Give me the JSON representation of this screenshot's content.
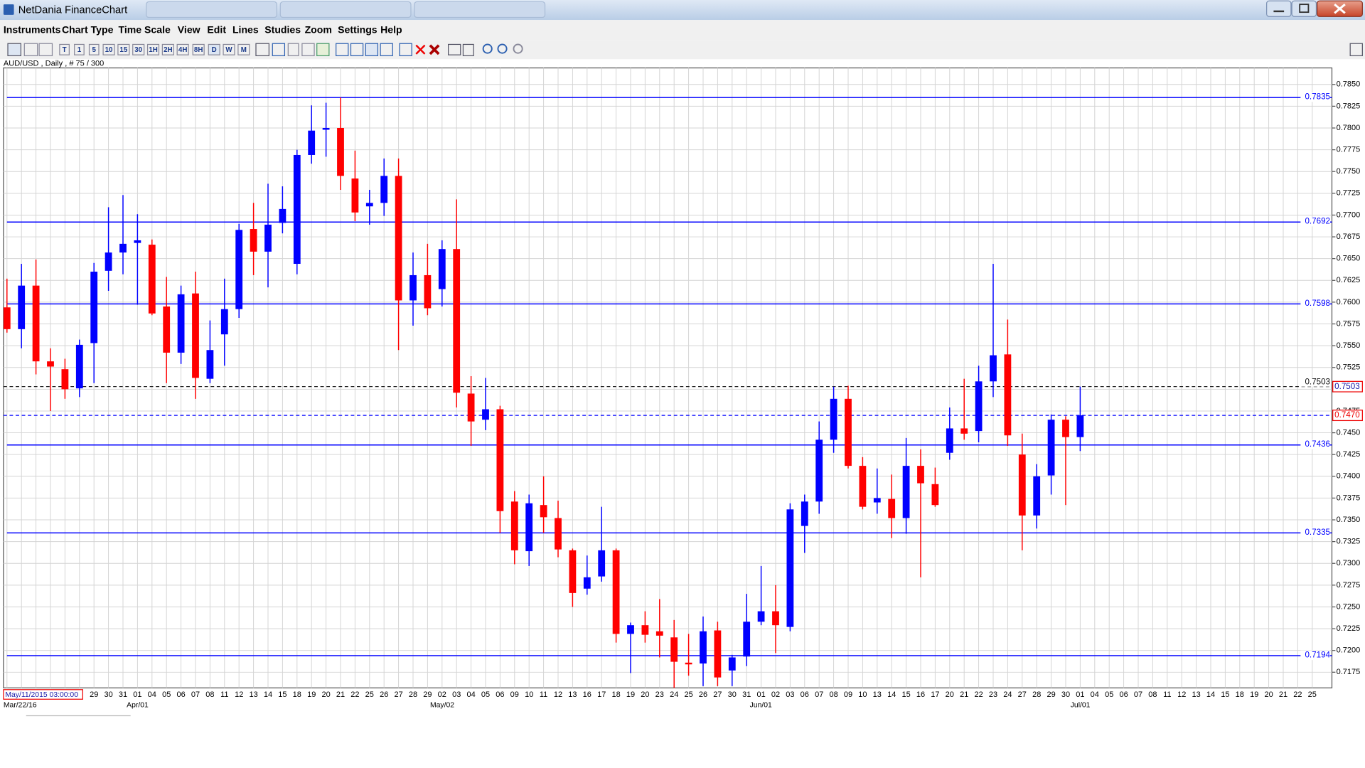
{
  "window": {
    "title": "NetDania FinanceChart",
    "menu": [
      "Instruments",
      "Chart Type",
      "Time Scale",
      "View",
      "Edit",
      "Lines",
      "Studies",
      "Zoom",
      "Settings",
      "Help"
    ],
    "timeframes": [
      "T",
      "1",
      "5",
      "10",
      "15",
      "30",
      "1H",
      "2H",
      "4H",
      "8H",
      "D",
      "W",
      "M"
    ],
    "info": "AUD/USD , Daily , # 75 / 300",
    "cursor_date": "May/11/2015 03:00:00"
  },
  "chart_data": {
    "type": "candlestick",
    "categories": [
      null,
      null,
      null,
      null,
      null,
      null,
      "29",
      "30",
      "31",
      "01",
      "04",
      "05",
      "06",
      "07",
      "08",
      "11",
      "12",
      "13",
      "14",
      "15",
      "18",
      "19",
      "20",
      "21",
      "22",
      "25",
      "26",
      "27",
      "28",
      "29",
      "02",
      "03",
      "04",
      "05",
      "06",
      "09",
      "10",
      "11",
      "12",
      "13",
      "16",
      "17",
      "18",
      "19",
      "20",
      "23",
      "24",
      "25",
      "26",
      "27",
      "30",
      "31",
      "01",
      "02",
      "03",
      "06",
      "07",
      "08",
      "09",
      "10",
      "13",
      "14",
      "15",
      "16",
      "17",
      "20",
      "21",
      "22",
      "23",
      "24",
      "27",
      "28",
      "29",
      "30",
      "01",
      "04",
      "05",
      "06",
      "07",
      "08",
      "11",
      "12",
      "13",
      "14",
      "15",
      "18",
      "19",
      "20",
      "21",
      "22",
      "25"
    ],
    "period_labels": [
      "Mar/22/16",
      "Apr/01",
      "May/02",
      "Jun/01",
      "Jul/01"
    ],
    "open": [
      0.7594,
      0.7569,
      0.7619,
      0.7532,
      0.7523,
      0.7501,
      0.7553,
      0.7636,
      0.7657,
      0.7668,
      0.7666,
      0.7595,
      0.7542,
      0.761,
      0.7512,
      0.7563,
      0.7592,
      0.7684,
      0.7658,
      0.7691,
      0.7644,
      0.7769,
      0.7798,
      0.78,
      0.7742,
      0.771,
      0.7714,
      0.7745,
      0.7602,
      0.7631,
      0.7615,
      0.7661,
      0.7495,
      0.7465,
      0.7477,
      0.7371,
      0.7314,
      0.7367,
      0.7352,
      0.7315,
      0.7271,
      0.7285,
      0.7315,
      0.7219,
      0.7229,
      0.7222,
      0.7215,
      0.7186,
      0.7185,
      0.7223,
      0.7177,
      0.7193,
      0.7233,
      0.7245,
      0.7227,
      0.7343,
      0.7371,
      0.7442,
      0.7489,
      0.7412,
      0.737,
      0.7374,
      0.7352,
      0.7412,
      0.7391,
      0.7427,
      0.7455,
      0.7452,
      0.7509,
      0.754,
      0.7425,
      0.7355,
      0.7401,
      0.7465,
      0.7445,
      null,
      null,
      null,
      null,
      null,
      null,
      null,
      null,
      null,
      null,
      null,
      null,
      null,
      null,
      null,
      null
    ],
    "high": [
      0.7627,
      0.7644,
      0.7649,
      0.7547,
      0.7535,
      0.7557,
      0.7645,
      0.7709,
      0.7723,
      0.7701,
      0.7672,
      0.7629,
      0.7619,
      0.7635,
      0.7579,
      0.7627,
      0.769,
      0.7714,
      0.7736,
      0.7733,
      0.7775,
      0.7826,
      0.7829,
      0.7835,
      0.7774,
      0.7729,
      0.7765,
      0.7765,
      0.7657,
      0.7667,
      0.7671,
      0.7718,
      0.7515,
      0.7513,
      0.7481,
      0.7383,
      0.7379,
      0.74,
      0.7372,
      0.7317,
      0.7309,
      0.7365,
      0.7317,
      0.7232,
      0.7245,
      0.7259,
      0.7235,
      0.7219,
      0.7239,
      0.7233,
      0.7195,
      0.7265,
      0.7297,
      0.7275,
      0.7369,
      0.7379,
      0.7463,
      0.7503,
      0.7504,
      0.7422,
      0.7409,
      0.7402,
      0.7444,
      0.7431,
      0.741,
      0.7479,
      0.7512,
      0.7527,
      0.7644,
      0.758,
      0.7449,
      0.7414,
      0.7471,
      0.7469,
      0.7503,
      null,
      null,
      null,
      null,
      null,
      null,
      null,
      null,
      null,
      null,
      null,
      null,
      null,
      null,
      null,
      null
    ],
    "low": [
      0.7565,
      0.7547,
      0.7517,
      0.7475,
      0.7489,
      0.7491,
      0.7507,
      0.7613,
      0.7632,
      0.7597,
      0.7585,
      0.7507,
      0.7529,
      0.7489,
      0.7507,
      0.7527,
      0.7582,
      0.7631,
      0.7617,
      0.7679,
      0.7632,
      0.7759,
      0.7767,
      0.7729,
      0.7693,
      0.7689,
      0.7699,
      0.7545,
      0.7573,
      0.7585,
      0.7595,
      0.7479,
      0.7435,
      0.7453,
      0.7335,
      0.7299,
      0.7297,
      0.7335,
      0.7307,
      0.725,
      0.7264,
      0.7279,
      0.7209,
      0.7174,
      0.7209,
      0.7192,
      0.7157,
      0.7171,
      0.7159,
      0.7159,
      0.7159,
      0.7182,
      0.7229,
      0.7197,
      0.7222,
      0.7312,
      0.7357,
      0.7427,
      0.7409,
      0.7362,
      0.7357,
      0.7329,
      0.7334,
      0.7284,
      0.7365,
      0.7419,
      0.7442,
      0.7439,
      0.7491,
      0.7435,
      0.7315,
      0.734,
      0.7379,
      0.7367,
      0.7429,
      null,
      null,
      null,
      null,
      null,
      null,
      null,
      null,
      null,
      null,
      null,
      null,
      null,
      null,
      null,
      null
    ],
    "close": [
      0.7569,
      0.7619,
      0.7532,
      0.7526,
      0.75,
      0.7551,
      0.7635,
      0.7657,
      0.7667,
      0.7671,
      0.7587,
      0.7542,
      0.7609,
      0.7513,
      0.7545,
      0.7592,
      0.7683,
      0.7658,
      0.7689,
      0.7707,
      0.7769,
      0.7797,
      0.78,
      0.7745,
      0.7703,
      0.7714,
      0.7745,
      0.7602,
      0.7631,
      0.7593,
      0.7661,
      0.7496,
      0.7463,
      0.7477,
      0.736,
      0.7315,
      0.7369,
      0.7353,
      0.7316,
      0.7266,
      0.7284,
      0.7315,
      0.7219,
      0.7229,
      0.7218,
      0.7217,
      0.7187,
      0.7184,
      0.7222,
      0.7169,
      0.7192,
      0.7233,
      0.7245,
      0.7229,
      0.7362,
      0.7371,
      0.7442,
      0.7489,
      0.7412,
      0.7365,
      0.7375,
      0.7352,
      0.7412,
      0.7392,
      0.7367,
      0.7455,
      0.7449,
      0.7509,
      0.7539,
      0.7447,
      0.7355,
      0.74,
      0.7465,
      0.7445,
      0.747,
      null,
      null,
      null,
      null,
      null,
      null,
      null,
      null,
      null,
      null,
      null,
      null,
      null,
      null,
      null,
      null
    ],
    "up_color": "#0000ff",
    "down_color": "#ff0000",
    "ylim": [
      0.7157,
      0.7869
    ],
    "yticks": [
      0.7175,
      {
        "value": 0.72,
        "label": "0.7200"
      },
      0.7225,
      {
        "value": 0.725,
        "label": "0.7250"
      },
      0.7275,
      {
        "value": 0.73,
        "label": "0.7300"
      },
      0.7325,
      {
        "value": 0.735,
        "label": "0.7350"
      },
      0.7375,
      {
        "value": 0.74,
        "label": "0.7400"
      },
      0.7425,
      {
        "value": 0.745,
        "label": "0.7450"
      },
      0.7475,
      {
        "value": 0.75,
        "label": "0.7500"
      },
      0.7525,
      {
        "value": 0.755,
        "label": "0.7550"
      },
      0.7575,
      {
        "value": 0.76,
        "label": "0.7600"
      },
      0.7625,
      {
        "value": 0.765,
        "label": "0.7650"
      },
      0.7675,
      {
        "value": 0.77,
        "label": "0.7700"
      },
      0.7725,
      {
        "value": 0.775,
        "label": "0.7750"
      },
      0.7775,
      {
        "value": 0.78,
        "label": "0.7800"
      },
      0.7825,
      {
        "value": 0.785,
        "label": "0.7850"
      }
    ],
    "grid": true,
    "levels": [
      0.7835,
      0.7692,
      0.7598,
      0.7436,
      0.7335,
      0.7194
    ],
    "level_color": "#0000ff",
    "reference_line": 0.7503,
    "last_price": {
      "value": 0.747,
      "label": "0.7470"
    }
  }
}
